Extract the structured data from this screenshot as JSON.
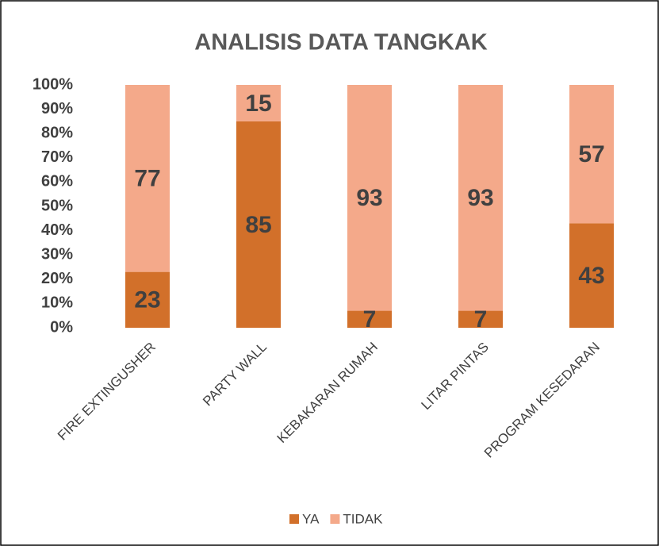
{
  "chart_data": {
    "type": "stacked_bar",
    "title": "ANALISIS DATA TANGKAK",
    "categories": [
      "FIRE EXTINGUSHER",
      "PARTY WALL",
      "KEBAKARAN RUMAH",
      "LITAR PINTAS",
      "PROGRAM KESEDARAN"
    ],
    "series": [
      {
        "name": "YA",
        "color": "#d2702a",
        "values": [
          23,
          85,
          7,
          7,
          43
        ]
      },
      {
        "name": "TIDAK",
        "color": "#f4a98a",
        "values": [
          77,
          15,
          93,
          93,
          57
        ]
      }
    ],
    "ylim": [
      0,
      100
    ],
    "yticks": [
      {
        "value": 0,
        "label": "0%"
      },
      {
        "value": 10,
        "label": "10%"
      },
      {
        "value": 20,
        "label": "20%"
      },
      {
        "value": 30,
        "label": "30%"
      },
      {
        "value": 40,
        "label": "40%"
      },
      {
        "value": 50,
        "label": "50%"
      },
      {
        "value": 60,
        "label": "60%"
      },
      {
        "value": 70,
        "label": "70%"
      },
      {
        "value": 80,
        "label": "80%"
      },
      {
        "value": 90,
        "label": "90%"
      },
      {
        "value": 100,
        "label": "100%"
      }
    ],
    "grid": false,
    "legend": "bottom"
  }
}
